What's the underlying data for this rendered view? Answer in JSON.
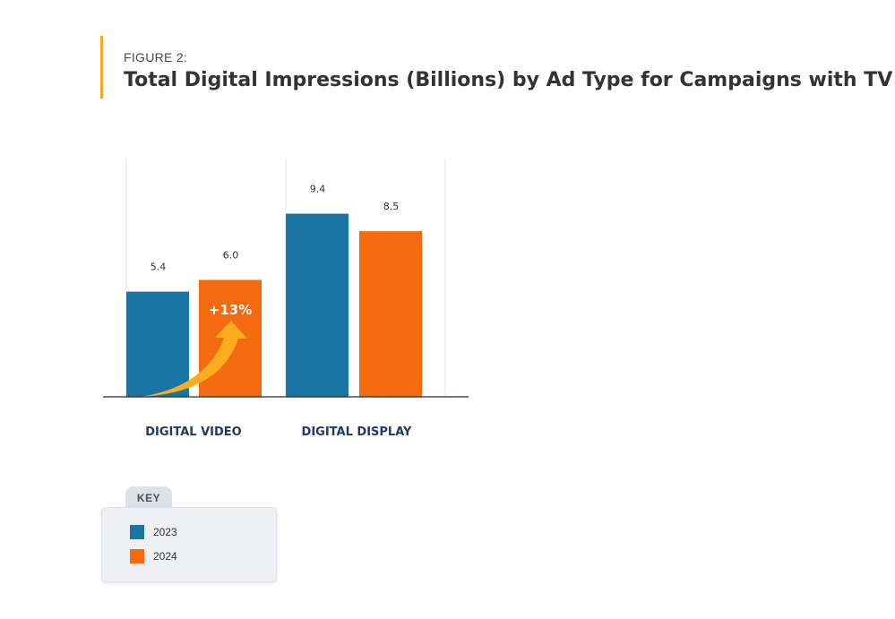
{
  "figure": {
    "label": "FIGURE 2:",
    "title": "Total Digital Impressions (Billions) by Ad Type for Campaigns with TV"
  },
  "chart_data": {
    "type": "bar",
    "categories": [
      "DIGITAL VIDEO",
      "DIGITAL DISPLAY"
    ],
    "series": [
      {
        "name": "2023",
        "values": [
          5.4,
          9.4
        ],
        "labels": [
          "5.4",
          "9.4"
        ],
        "color": "#1a75a5"
      },
      {
        "name": "2024",
        "values": [
          6.0,
          8.5
        ],
        "labels": [
          "6.0",
          "8.5"
        ],
        "color": "#f5690f"
      }
    ],
    "ylim": [
      0,
      12
    ],
    "annotations": [
      {
        "text": "+13%",
        "category": "DIGITAL VIDEO",
        "series": "2024",
        "icon": "growth-arrow-icon",
        "color": "#f9ad1f"
      }
    ],
    "grid": false
  },
  "key": {
    "title": "KEY",
    "items": [
      {
        "label": "2023",
        "color": "#1a75a5"
      },
      {
        "label": "2024",
        "color": "#f5690f"
      }
    ]
  }
}
